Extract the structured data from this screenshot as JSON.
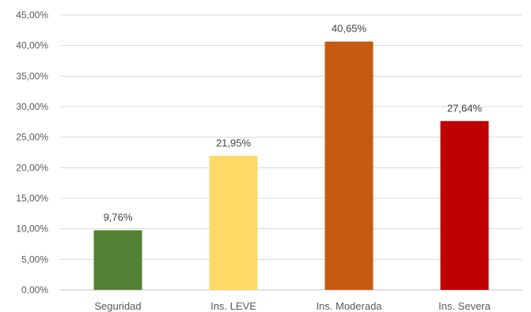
{
  "chart_data": {
    "type": "bar",
    "title": "",
    "xlabel": "",
    "ylabel": "",
    "categories": [
      "Seguridad",
      "Ins. LEVE",
      "Ins. Moderada",
      "Ins. Severa"
    ],
    "values": [
      9.76,
      21.95,
      40.65,
      27.64
    ],
    "data_labels": [
      "9,76%",
      "21,95%",
      "40,65%",
      "27,64%"
    ],
    "colors": [
      "#548235",
      "#ffd966",
      "#c55a11",
      "#c00000"
    ],
    "ylim": [
      0,
      45
    ],
    "yticks": [
      0,
      5,
      10,
      15,
      20,
      25,
      30,
      35,
      40,
      45
    ],
    "ytick_labels": [
      "0,00%",
      "5,00%",
      "10,00%",
      "15,00%",
      "20,00%",
      "25,00%",
      "30,00%",
      "35,00%",
      "40,00%",
      "45,00%"
    ],
    "grid": true,
    "legend": "none"
  }
}
